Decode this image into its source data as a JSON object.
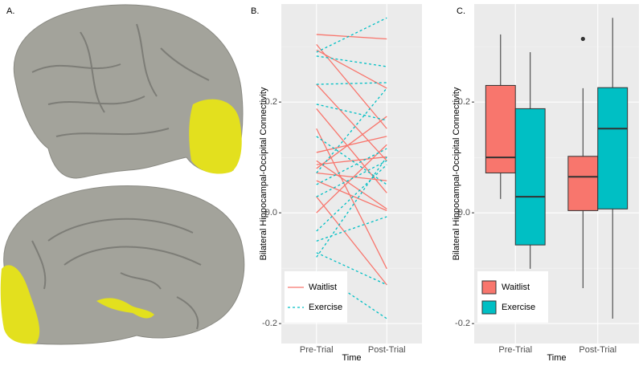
{
  "figure": {
    "panel_a_label": "A."
  },
  "chart_data": [
    {
      "type": "line",
      "label": "B.",
      "x_label": "Time",
      "y_label": "Bilateral Hippocampal-Occipital Connectivity",
      "categories": [
        "Pre-Trial",
        "Post-Trial"
      ],
      "ylim": [
        -0.236,
        0.377
      ],
      "yticks": [
        -0.2,
        {
          "value": 0,
          "label": "0.0"
        },
        0.2
      ],
      "grid": true,
      "legend": "bottom-left",
      "series": [
        {
          "name": "Waitlist",
          "color": "#f8766d",
          "dashed": false,
          "lines": [
            [
              0.322,
              0.314
            ],
            [
              0.304,
              0.152
            ],
            [
              0.294,
              0.225
            ],
            [
              0.232,
              0.094
            ],
            [
              0.188,
              0.036
            ],
            [
              0.152,
              -0.101
            ],
            [
              0.109,
              0.138
            ],
            [
              0.094,
              0.007
            ],
            [
              0.087,
              0.101
            ],
            [
              0.08,
              0.174
            ],
            [
              0.072,
              0.058
            ],
            [
              0.029,
              -0.13
            ],
            [
              0.058,
              0.004
            ],
            [
              0.0,
              0.123
            ]
          ]
        },
        {
          "name": "Exercise",
          "color": "#00bfc4",
          "dashed": true,
          "lines": [
            [
              0.29,
              0.352
            ],
            [
              0.283,
              0.264
            ],
            [
              0.232,
              0.235
            ],
            [
              0.196,
              0.167
            ],
            [
              0.138,
              0.051
            ],
            [
              0.072,
              0.225
            ],
            [
              0.051,
              0.116
            ],
            [
              0.029,
              0.094
            ],
            [
              -0.033,
              0.087
            ],
            [
              -0.051,
              -0.007
            ],
            [
              -0.08,
              0.101
            ],
            [
              -0.106,
              -0.191
            ],
            [
              -0.072,
              -0.13
            ]
          ]
        }
      ]
    },
    {
      "type": "box",
      "label": "C.",
      "x_label": "Time",
      "y_label": "Bilateral Hippocampal-Occipital Connectivity",
      "categories": [
        "Pre-Trial",
        "Post-Trial"
      ],
      "ylim": [
        -0.236,
        0.377
      ],
      "yticks": [
        -0.2,
        {
          "value": 0,
          "label": "0.0"
        },
        0.2
      ],
      "grid": true,
      "legend": "bottom-left",
      "series": [
        {
          "name": "Waitlist",
          "color": "#f8766d",
          "boxes": [
            {
              "whisker_low": 0.025,
              "q1": 0.072,
              "median": 0.1,
              "q3": 0.23,
              "whisker_high": 0.322
            },
            {
              "whisker_low": -0.136,
              "q1": 0.004,
              "median": 0.065,
              "q3": 0.102,
              "whisker_high": 0.225,
              "outliers": [
                0.314
              ]
            }
          ]
        },
        {
          "name": "Exercise",
          "color": "#00bfc4",
          "boxes": [
            {
              "whisker_low": -0.101,
              "q1": -0.058,
              "median": 0.029,
              "q3": 0.188,
              "whisker_high": 0.29
            },
            {
              "whisker_low": -0.191,
              "q1": 0.007,
              "median": 0.152,
              "q3": 0.226,
              "whisker_high": 0.352
            }
          ]
        }
      ]
    }
  ]
}
